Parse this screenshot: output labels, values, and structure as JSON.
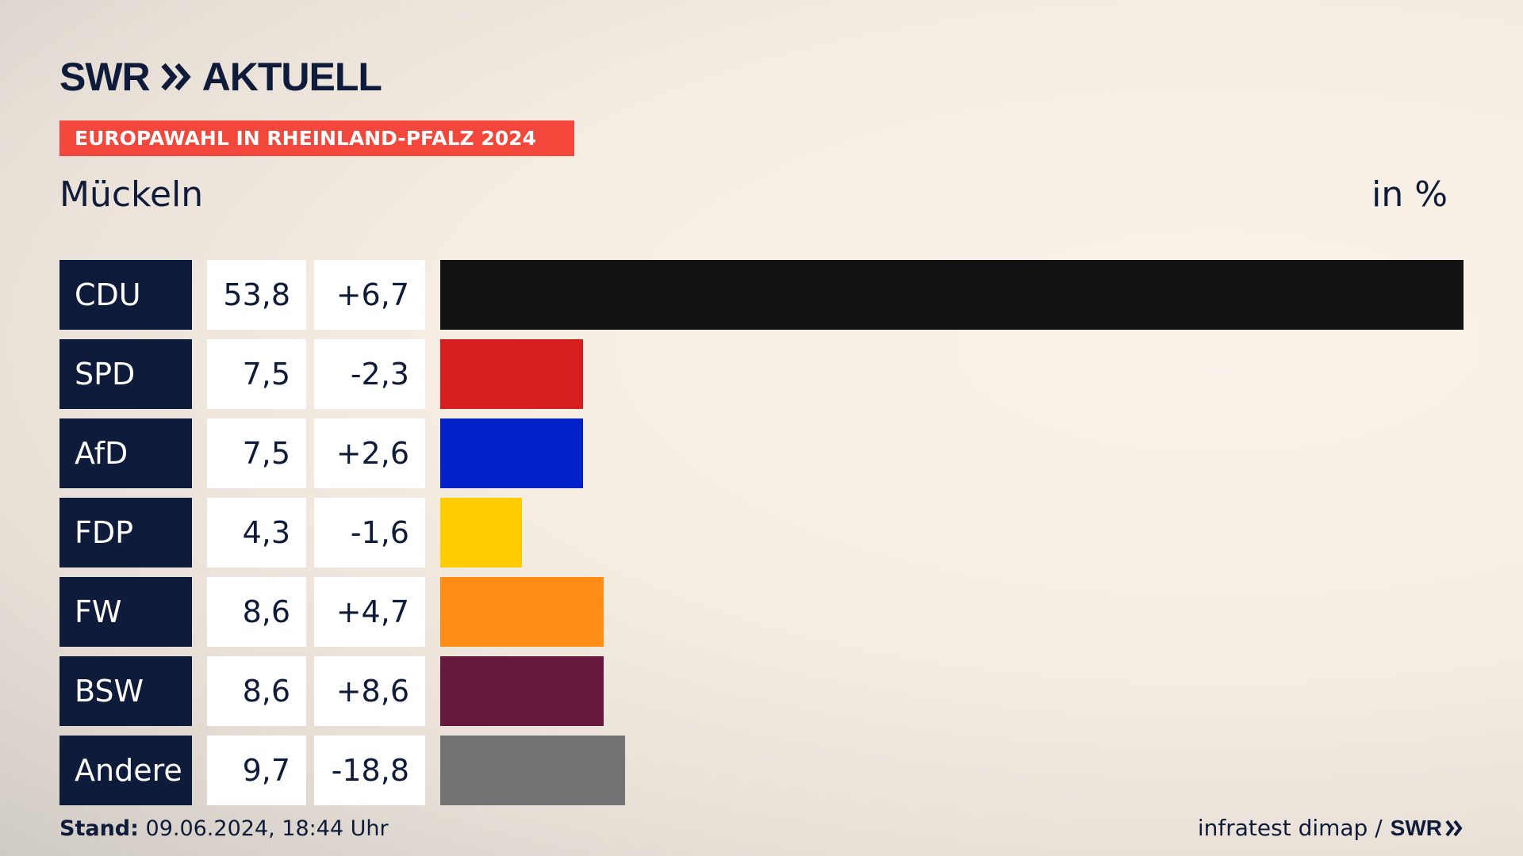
{
  "header": {
    "logo_swr": "SWR",
    "logo_aktuell": "AKTUELL",
    "badge": "EUROPAWAHL IN RHEINLAND-PFALZ 2024",
    "place": "Mückeln",
    "unit": "in %"
  },
  "chart_data": {
    "type": "bar",
    "orientation": "horizontal",
    "categories": [
      "CDU",
      "SPD",
      "AfD",
      "FDP",
      "FW",
      "BSW",
      "Andere"
    ],
    "values": [
      53.8,
      7.5,
      7.5,
      4.3,
      8.6,
      8.6,
      9.7
    ],
    "value_labels": [
      "53,8",
      "7,5",
      "7,5",
      "4,3",
      "8,6",
      "8,6",
      "9,7"
    ],
    "diff_labels": [
      "+6,7",
      "-2,3",
      "+2,6",
      "-1,6",
      "+4,7",
      "+8,6",
      "-18,8"
    ],
    "colors": [
      "#121212",
      "#d71f1f",
      "#0020c8",
      "#ffcc00",
      "#ff8c16",
      "#66193c",
      "#737373"
    ],
    "xlim": [
      0,
      53.8
    ]
  },
  "footer": {
    "stand_label": "Stand:",
    "stand_value": "09.06.2024, 18:44 Uhr",
    "source": "infratest dimap /",
    "source_logo": "SWR"
  }
}
